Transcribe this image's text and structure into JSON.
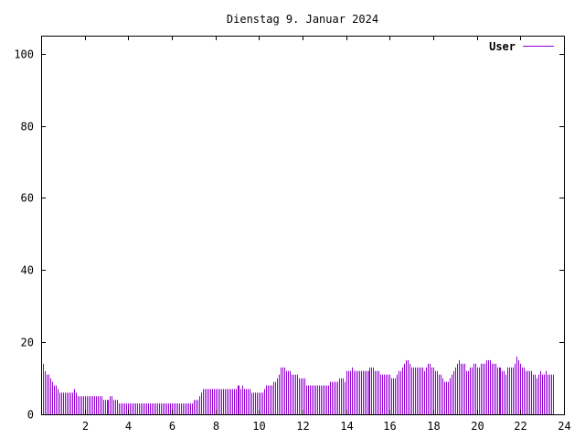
{
  "chart_data": {
    "type": "bar",
    "title": "Dienstag 9. Januar 2024",
    "xlabel": "",
    "ylabel": "",
    "xlim": [
      0,
      24
    ],
    "ylim": [
      0,
      105
    ],
    "x_ticks": [
      2,
      4,
      6,
      8,
      10,
      12,
      14,
      16,
      18,
      20,
      22,
      24
    ],
    "y_ticks": [
      0,
      20,
      40,
      60,
      80,
      100
    ],
    "grid": false,
    "legend_position": "top-right",
    "sample_interval_minutes": 5,
    "series": [
      {
        "name": "User",
        "color": "#9400d3",
        "values": [
          15,
          14,
          12,
          11,
          11,
          10,
          9,
          8,
          8,
          7,
          6,
          6,
          6,
          6,
          6,
          6,
          6,
          6,
          7,
          6,
          5,
          5,
          5,
          5,
          5,
          5,
          5,
          5,
          5,
          5,
          5,
          5,
          5,
          5,
          4,
          4,
          4,
          4,
          5,
          5,
          4,
          4,
          4,
          3,
          3,
          3,
          3,
          3,
          3,
          3,
          3,
          3,
          3,
          3,
          3,
          3,
          3,
          3,
          3,
          3,
          3,
          3,
          3,
          3,
          3,
          3,
          3,
          3,
          3,
          3,
          3,
          3,
          3,
          3,
          3,
          3,
          3,
          3,
          3,
          3,
          3,
          3,
          3,
          3,
          4,
          4,
          4,
          5,
          6,
          7,
          7,
          7,
          7,
          7,
          7,
          7,
          7,
          7,
          7,
          7,
          7,
          7,
          7,
          7,
          7,
          7,
          7,
          7,
          8,
          8,
          7,
          8,
          7,
          7,
          7,
          7,
          6,
          6,
          6,
          6,
          6,
          6,
          6,
          7,
          8,
          8,
          8,
          8,
          9,
          9,
          10,
          11,
          13,
          13,
          13,
          12,
          12,
          12,
          11,
          11,
          11,
          11,
          10,
          10,
          10,
          10,
          8,
          8,
          8,
          8,
          8,
          8,
          8,
          8,
          8,
          8,
          8,
          8,
          8,
          9,
          9,
          9,
          9,
          9,
          10,
          10,
          10,
          9,
          12,
          12,
          12,
          13,
          12,
          12,
          12,
          12,
          12,
          12,
          12,
          12,
          12,
          13,
          13,
          13,
          12,
          12,
          12,
          11,
          11,
          11,
          11,
          11,
          11,
          10,
          10,
          10,
          11,
          12,
          12,
          13,
          14,
          15,
          15,
          14,
          13,
          13,
          13,
          13,
          13,
          13,
          13,
          12,
          13,
          14,
          14,
          13,
          13,
          12,
          12,
          11,
          11,
          10,
          9,
          9,
          9,
          10,
          11,
          12,
          13,
          14,
          15,
          14,
          14,
          14,
          12,
          12,
          13,
          13,
          14,
          14,
          13,
          13,
          14,
          14,
          14,
          15,
          15,
          15,
          14,
          14,
          14,
          13,
          13,
          13,
          12,
          12,
          11,
          13,
          13,
          13,
          13,
          14,
          16,
          15,
          14,
          13,
          13,
          12,
          12,
          12,
          12,
          11,
          11,
          10,
          11,
          12,
          11,
          11,
          12,
          11,
          11,
          11,
          11
        ]
      }
    ]
  }
}
